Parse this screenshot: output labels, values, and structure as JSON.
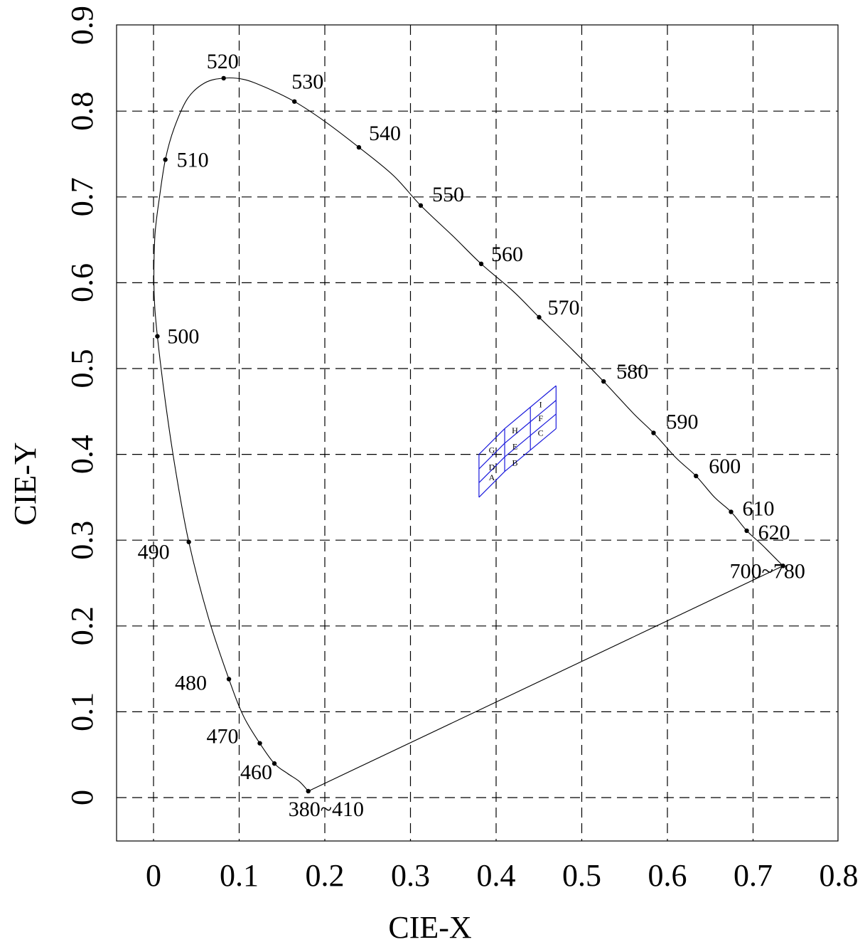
{
  "chart_data": {
    "type": "line",
    "title": "",
    "xlabel": "CIE-X",
    "ylabel": "CIE-Y",
    "xlim": [
      -0.045,
      0.8
    ],
    "ylim": [
      -0.05,
      0.9
    ],
    "xticks": [
      0,
      0.1,
      0.2,
      0.3,
      0.4,
      0.5,
      0.6,
      0.7,
      0.8
    ],
    "yticks": [
      0,
      0.1,
      0.2,
      0.3,
      0.4,
      0.5,
      0.6,
      0.7,
      0.8,
      0.9
    ],
    "grid": true,
    "locus_colors": {
      "locus": "#000000",
      "bins": "#1a1adc"
    },
    "spectral_locus": [
      [
        0.1807,
        0.0075
      ],
      [
        0.17,
        0.019
      ],
      [
        0.1563,
        0.0282
      ],
      [
        0.1411,
        0.0397
      ],
      [
        0.1241,
        0.0633
      ],
      [
        0.105,
        0.095
      ],
      [
        0.088,
        0.1381
      ],
      [
        0.064,
        0.21
      ],
      [
        0.0412,
        0.2979
      ],
      [
        0.026,
        0.38
      ],
      [
        0.014,
        0.46
      ],
      [
        0.0045,
        0.5376
      ],
      [
        0.001,
        0.58
      ],
      [
        0.0005,
        0.62
      ],
      [
        0.002,
        0.66
      ],
      [
        0.007,
        0.7
      ],
      [
        0.0138,
        0.7435
      ],
      [
        0.024,
        0.78
      ],
      [
        0.04,
        0.815
      ],
      [
        0.06,
        0.833
      ],
      [
        0.0819,
        0.8384
      ],
      [
        0.105,
        0.837
      ],
      [
        0.13,
        0.828
      ],
      [
        0.1645,
        0.8112
      ],
      [
        0.2,
        0.788
      ],
      [
        0.2398,
        0.7578
      ],
      [
        0.28,
        0.725
      ],
      [
        0.312,
        0.69
      ],
      [
        0.35,
        0.654
      ],
      [
        0.3826,
        0.622
      ],
      [
        0.42,
        0.59
      ],
      [
        0.45,
        0.56
      ],
      [
        0.49,
        0.521
      ],
      [
        0.5255,
        0.485
      ],
      [
        0.56,
        0.448
      ],
      [
        0.5838,
        0.425
      ],
      [
        0.61,
        0.396
      ],
      [
        0.6334,
        0.3748
      ],
      [
        0.655,
        0.35
      ],
      [
        0.6743,
        0.333
      ],
      [
        0.6926,
        0.311
      ],
      [
        0.71,
        0.295
      ],
      [
        0.72,
        0.285
      ],
      [
        0.735,
        0.27
      ]
    ],
    "purple_line": [
      [
        0.735,
        0.27
      ],
      [
        0.1807,
        0.0075
      ]
    ],
    "wavelength_points": [
      {
        "label": "380~410",
        "x": 0.1807,
        "y": 0.0075
      },
      {
        "label": "460",
        "x": 0.1411,
        "y": 0.0397
      },
      {
        "label": "470",
        "x": 0.1241,
        "y": 0.0633
      },
      {
        "label": "480",
        "x": 0.088,
        "y": 0.1381
      },
      {
        "label": "490",
        "x": 0.0412,
        "y": 0.2979
      },
      {
        "label": "500",
        "x": 0.0045,
        "y": 0.5376
      },
      {
        "label": "510",
        "x": 0.0138,
        "y": 0.7435
      },
      {
        "label": "520",
        "x": 0.0819,
        "y": 0.8384
      },
      {
        "label": "530",
        "x": 0.1645,
        "y": 0.8112
      },
      {
        "label": "540",
        "x": 0.2398,
        "y": 0.7578
      },
      {
        "label": "550",
        "x": 0.312,
        "y": 0.69
      },
      {
        "label": "560",
        "x": 0.3826,
        "y": 0.622
      },
      {
        "label": "570",
        "x": 0.4502,
        "y": 0.5598
      },
      {
        "label": "580",
        "x": 0.5255,
        "y": 0.485
      },
      {
        "label": "590",
        "x": 0.5838,
        "y": 0.425
      },
      {
        "label": "600",
        "x": 0.6334,
        "y": 0.3748
      },
      {
        "label": "610",
        "x": 0.6743,
        "y": 0.333
      },
      {
        "label": "620",
        "x": 0.6926,
        "y": 0.311
      },
      {
        "label": "700~780",
        "x": 0.735,
        "y": 0.27
      }
    ],
    "bin_grid": {
      "columns_bottom": [
        [
          0.38,
          0.35
        ],
        [
          0.41,
          0.38
        ],
        [
          0.44,
          0.405
        ],
        [
          0.47,
          0.43
        ]
      ],
      "columns_top": [
        [
          0.38,
          0.4
        ],
        [
          0.41,
          0.43
        ],
        [
          0.44,
          0.455
        ],
        [
          0.47,
          0.48
        ]
      ],
      "rows": [
        [
          [
            0.38,
            0.35
          ],
          [
            0.41,
            0.38
          ],
          [
            0.44,
            0.405
          ],
          [
            0.47,
            0.43
          ]
        ],
        [
          [
            0.38,
            0.367
          ],
          [
            0.41,
            0.397
          ],
          [
            0.44,
            0.422
          ],
          [
            0.47,
            0.447
          ]
        ],
        [
          [
            0.38,
            0.383
          ],
          [
            0.41,
            0.413
          ],
          [
            0.44,
            0.438
          ],
          [
            0.47,
            0.463
          ]
        ],
        [
          [
            0.38,
            0.4
          ],
          [
            0.41,
            0.43
          ],
          [
            0.44,
            0.455
          ],
          [
            0.47,
            0.48
          ]
        ]
      ],
      "cells": [
        {
          "label": "A",
          "x": 0.395,
          "y": 0.373
        },
        {
          "label": "B",
          "x": 0.422,
          "y": 0.39
        },
        {
          "label": "C",
          "x": 0.452,
          "y": 0.425
        },
        {
          "label": "D",
          "x": 0.395,
          "y": 0.385
        },
        {
          "label": "E",
          "x": 0.422,
          "y": 0.409
        },
        {
          "label": "F",
          "x": 0.452,
          "y": 0.442
        },
        {
          "label": "G",
          "x": 0.395,
          "y": 0.405
        },
        {
          "label": "H",
          "x": 0.422,
          "y": 0.428
        },
        {
          "label": "I",
          "x": 0.452,
          "y": 0.458
        }
      ]
    }
  }
}
